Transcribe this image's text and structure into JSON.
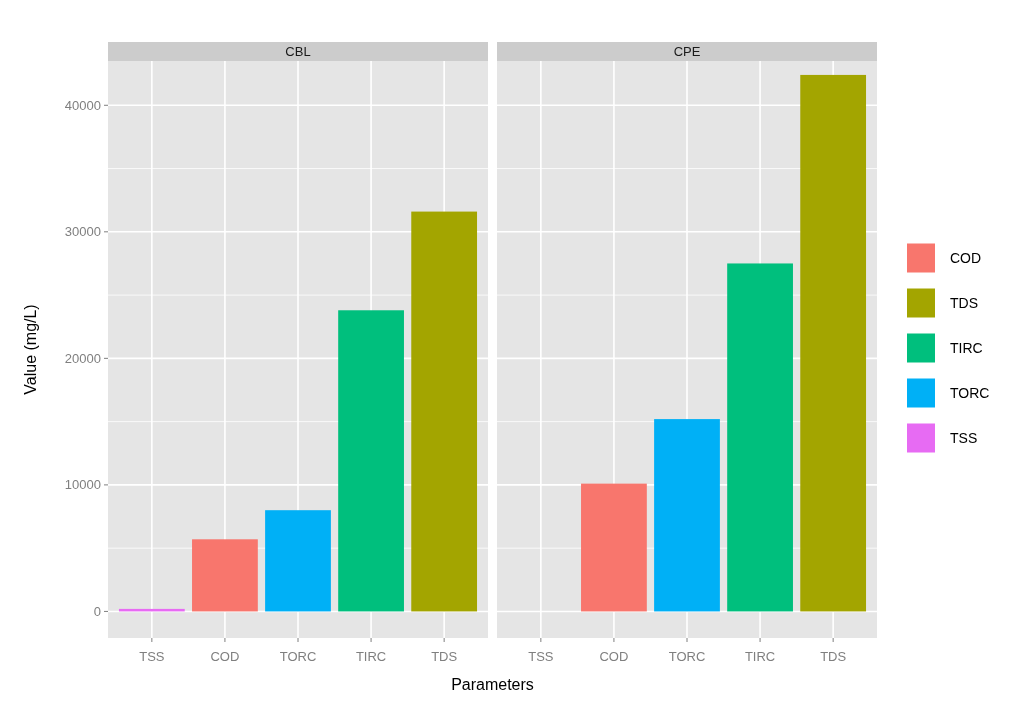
{
  "chart_data": [
    {
      "type": "bar",
      "title": "CBL",
      "xlabel": "Parameters",
      "ylabel": "Value (mg/L)",
      "categories": [
        "TSS",
        "COD",
        "TORC",
        "TIRC",
        "TDS"
      ],
      "series": [
        {
          "color": "#f8766d",
          "values": [
            null,
            5700,
            null,
            null,
            null
          ]
        },
        {
          "color": "#a3a500",
          "values": [
            null,
            null,
            null,
            null,
            31600
          ]
        },
        {
          "color": "#00bf7d",
          "values": [
            null,
            null,
            null,
            23800,
            null
          ]
        },
        {
          "color": "#00b0f6",
          "values": [
            null,
            null,
            8000,
            null,
            null
          ]
        },
        {
          "color": "#e76bf3",
          "values": [
            200,
            null,
            null,
            null,
            null
          ]
        }
      ],
      "ylim": [
        -2100,
        43500
      ],
      "yticks": [
        0,
        {
          "value": 5000,
          "label": null
        },
        10000,
        {
          "value": 15000,
          "label": null
        },
        20000,
        {
          "value": 25000,
          "label": null
        },
        30000,
        {
          "value": 35000,
          "label": null
        },
        40000
      ],
      "grid": true,
      "legend": false
    },
    {
      "type": "bar",
      "title": "CPE",
      "categories": [
        "TSS",
        "COD",
        "TORC",
        "TIRC",
        "TDS"
      ],
      "series": [
        {
          "name": "COD",
          "color": "#f8766d",
          "values": [
            null,
            10100,
            null,
            null,
            null
          ]
        },
        {
          "name": "TDS",
          "color": "#a3a500",
          "values": [
            null,
            null,
            null,
            null,
            42400
          ]
        },
        {
          "name": "TIRC",
          "color": "#00bf7d",
          "values": [
            null,
            null,
            null,
            27500,
            null
          ]
        },
        {
          "name": "TORC",
          "color": "#00b0f6",
          "values": [
            null,
            null,
            15200,
            null,
            null
          ]
        },
        {
          "name": "TSS",
          "color": "#e76bf3",
          "values": [
            0,
            null,
            null,
            null,
            null
          ]
        }
      ],
      "ylim": [
        -2100,
        43500
      ],
      "yticks": [
        0,
        {
          "value": 5000,
          "label": null
        },
        10000,
        {
          "value": 15000,
          "label": null
        },
        20000,
        {
          "value": 25000,
          "label": null
        },
        30000,
        {
          "value": 35000,
          "label": null
        },
        40000
      ],
      "grid": true,
      "legend": "right",
      "tick_labels": "x"
    }
  ]
}
